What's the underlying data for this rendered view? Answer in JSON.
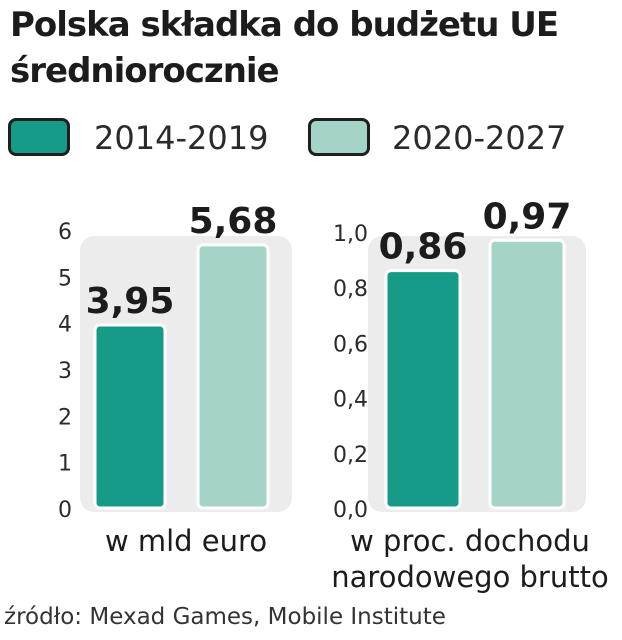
{
  "title_line1": "Polska składka do budżetu UE",
  "title_line2": "średniorocznie",
  "legend": [
    {
      "label": "2014-2019",
      "color": "#179b89"
    },
    {
      "label": "2020-2027",
      "color": "#a3d4c7"
    }
  ],
  "source": "źródło: Mexad Games, Mobile Institute",
  "chart_data": [
    {
      "type": "bar",
      "categories": [
        "2014-2019",
        "2020-2027"
      ],
      "values": [
        3.95,
        5.68
      ],
      "value_labels": [
        "3,95",
        "5,68"
      ],
      "ticks": [
        0,
        1,
        2,
        3,
        4,
        5,
        6
      ],
      "tick_labels": [
        "0",
        "1",
        "2",
        "3",
        "4",
        "5",
        "6"
      ],
      "ylim": [
        0,
        6
      ],
      "xlabel": "w mld euro",
      "colors": [
        "#179b89",
        "#a3d4c7"
      ]
    },
    {
      "type": "bar",
      "categories": [
        "2014-2019",
        "2020-2027"
      ],
      "values": [
        0.86,
        0.97
      ],
      "value_labels": [
        "0,86",
        "0,97"
      ],
      "ticks": [
        0,
        0.2,
        0.4,
        0.6,
        0.8,
        1.0
      ],
      "tick_labels": [
        "0,0",
        "0,2",
        "0,4",
        "0,6",
        "0,8",
        "1,0"
      ],
      "ylim": [
        0,
        1
      ],
      "xlabel": "w proc. dochodu narodowego brutto",
      "xlabel_lines": [
        "w proc. dochodu",
        "narodowego brutto"
      ],
      "colors": [
        "#179b89",
        "#a3d4c7"
      ]
    }
  ]
}
